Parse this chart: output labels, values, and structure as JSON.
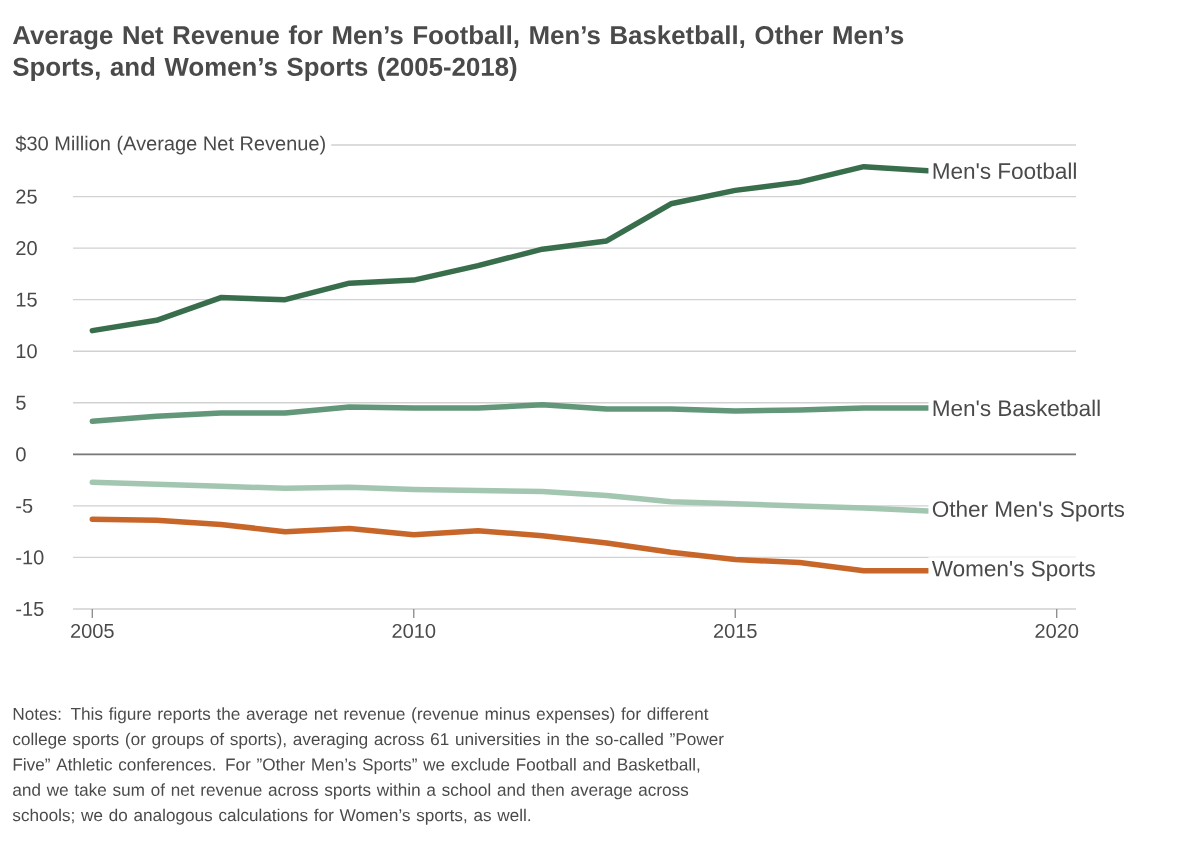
{
  "chart_data": {
    "type": "line",
    "title": "Average Net Revenue for Men’s Football, Men’s Basketball, Other Men’s Sports, and Women’s Sports (2005-2018)",
    "x": [
      2005,
      2006,
      2007,
      2008,
      2009,
      2010,
      2011,
      2012,
      2013,
      2014,
      2015,
      2016,
      2017,
      2018
    ],
    "series": [
      {
        "name": "Men's Football",
        "color": "#386e4c",
        "values": [
          12.0,
          13.0,
          15.2,
          15.0,
          16.6,
          16.9,
          18.3,
          19.9,
          20.7,
          24.3,
          25.6,
          26.4,
          27.9,
          27.5
        ]
      },
      {
        "name": "Men's Basketball",
        "color": "#62977a",
        "values": [
          3.2,
          3.7,
          4.0,
          4.0,
          4.6,
          4.5,
          4.5,
          4.8,
          4.4,
          4.4,
          4.2,
          4.3,
          4.5,
          4.5
        ]
      },
      {
        "name": "Other Men's Sports",
        "color": "#a3c6b1",
        "values": [
          -2.7,
          -2.9,
          -3.1,
          -3.3,
          -3.2,
          -3.4,
          -3.5,
          -3.6,
          -4.0,
          -4.6,
          -4.8,
          -5.0,
          -5.2,
          -5.5
        ]
      },
      {
        "name": "Women's Sports",
        "color": "#c8662a",
        "values": [
          -6.3,
          -6.4,
          -6.8,
          -7.5,
          -7.2,
          -7.8,
          -7.4,
          -7.9,
          -8.6,
          -9.5,
          -10.2,
          -10.5,
          -11.3,
          -11.3
        ]
      }
    ],
    "xlim": [
      2004.7,
      2020.3
    ],
    "xticks": [
      2005,
      2010,
      2015,
      2020
    ],
    "ylim": [
      -15,
      30
    ],
    "yticks": [
      -15,
      -10,
      -5,
      0,
      5,
      10,
      15,
      20,
      25,
      {
        "value": 30,
        "label": "$30 Million (Average Net Revenue)"
      }
    ],
    "grid": "y",
    "legend": false,
    "marker": "none",
    "line_style": "solid",
    "ref_lines": [
      {
        "axis": "y",
        "value": 0,
        "color": "#7a7a7a"
      }
    ],
    "annotations": [
      "Notes: This figure reports the average net revenue (revenue minus expenses) for different college sports (or groups of sports), averaging across 61 universities in the so-called ”Power Five” Athletic conferences. For ”Other Men’s Sports” we exclude Football and Basketball, and we take sum of net revenue across sports within a school and then average across schools; we do analogous calculations for Women’s sports, as well."
    ]
  }
}
